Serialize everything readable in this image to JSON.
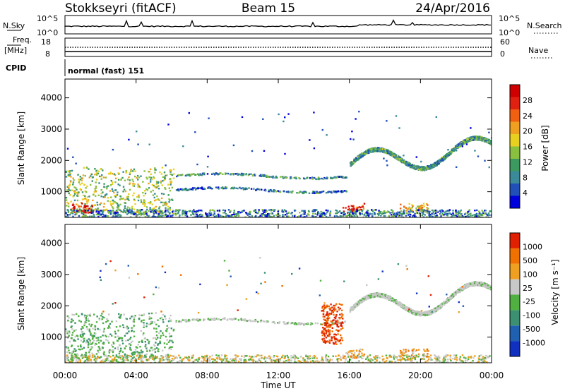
{
  "header": {
    "station": "Stokkseyri (fitACF)",
    "beam": "Beam 15",
    "date": "24/Apr/2016"
  },
  "top_panels": {
    "nsky_label": "N.Sky",
    "nsky_ticks": [
      "10^5",
      "10^0"
    ],
    "nsearch_label": "N.Search",
    "nsearch_ticks": [
      "10^5",
      "10^0"
    ],
    "freq_label": "Freq.",
    "freq_unit": "[MHz]",
    "freq_ticks": [
      "18",
      "8"
    ],
    "nave_label": "Nave",
    "nave_ticks": [
      "60",
      "0"
    ],
    "cpid_label": "CPID",
    "cpid_text": "normal (fast) 151"
  },
  "xaxis": {
    "label": "Time UT",
    "ticks": [
      "00:00",
      "04:00",
      "08:00",
      "12:00",
      "16:00",
      "20:00",
      "00:00"
    ]
  },
  "chart_data": [
    {
      "type": "heatmap",
      "name": "power",
      "ylabel": "Slant Range [km]",
      "yticks": [
        1000,
        2000,
        3000,
        4000
      ],
      "ylim": [
        180,
        4600
      ],
      "xlim": [
        0,
        24
      ],
      "colorbar_label": "Power [dB]",
      "colorbar_ticks": [
        "28",
        "24",
        "20",
        "16",
        "12",
        "8",
        "4"
      ],
      "colors": [
        "#0000dd",
        "#2050b8",
        "#3a8a9a",
        "#3c9a60",
        "#8ac040",
        "#e8d020",
        "#f0a020",
        "#f06010",
        "#e02010",
        "#d00000"
      ],
      "features": [
        {
          "kind": "blob",
          "x": [
            0.0,
            6.1
          ],
          "y": [
            350,
            1800
          ],
          "intensity": 0.45
        },
        {
          "kind": "blob",
          "x": [
            0.3,
            1.5
          ],
          "y": [
            350,
            650
          ],
          "intensity": 0.95
        },
        {
          "kind": "arc",
          "x": [
            6.2,
            15.8
          ],
          "y": [
            1450,
            1600
          ],
          "intensity": 0.25
        },
        {
          "kind": "arc",
          "x": [
            6.2,
            15.8
          ],
          "y": [
            1000,
            1150
          ],
          "intensity": 0.2
        },
        {
          "kind": "band",
          "x": [
            16.0,
            24.0
          ],
          "y": [
            1500,
            2800
          ],
          "intensity": 0.3
        },
        {
          "kind": "blob",
          "x": [
            15.6,
            16.8
          ],
          "y": [
            350,
            650
          ],
          "intensity": 0.9
        },
        {
          "kind": "blob",
          "x": [
            18.8,
            20.4
          ],
          "y": [
            400,
            650
          ],
          "intensity": 0.6
        }
      ]
    },
    {
      "type": "heatmap",
      "name": "velocity",
      "ylabel": "Slant Range [km]",
      "yticks": [
        1000,
        2000,
        3000,
        4000
      ],
      "ylim": [
        180,
        4600
      ],
      "xlim": [
        0,
        24
      ],
      "colorbar_label": "Velocity [m s⁻¹]",
      "colorbar_ticks": [
        "1000",
        "500",
        "100",
        "25",
        "-25",
        "-100",
        "-500",
        "-1000"
      ],
      "colors": [
        "#1030c0",
        "#2060b0",
        "#3a9070",
        "#50b040",
        "#c8c8c8",
        "#f0a020",
        "#f07000",
        "#e02000"
      ],
      "features": [
        {
          "kind": "blob",
          "x": [
            0.0,
            6.1
          ],
          "y": [
            350,
            1800
          ],
          "tone": "green"
        },
        {
          "kind": "arc",
          "x": [
            6.2,
            15.8
          ],
          "y": [
            1450,
            1600
          ],
          "tone": "grey"
        },
        {
          "kind": "band",
          "x": [
            16.0,
            24.0
          ],
          "y": [
            1500,
            2800
          ],
          "tone": "grey"
        },
        {
          "kind": "streak",
          "x": [
            14.4,
            15.6
          ],
          "y": [
            800,
            2100
          ],
          "tone": "red"
        },
        {
          "kind": "blob",
          "x": [
            15.6,
            16.8
          ],
          "y": [
            350,
            650
          ],
          "tone": "orange"
        },
        {
          "kind": "blob",
          "x": [
            18.8,
            20.4
          ],
          "y": [
            400,
            650
          ],
          "tone": "orange"
        }
      ]
    }
  ]
}
